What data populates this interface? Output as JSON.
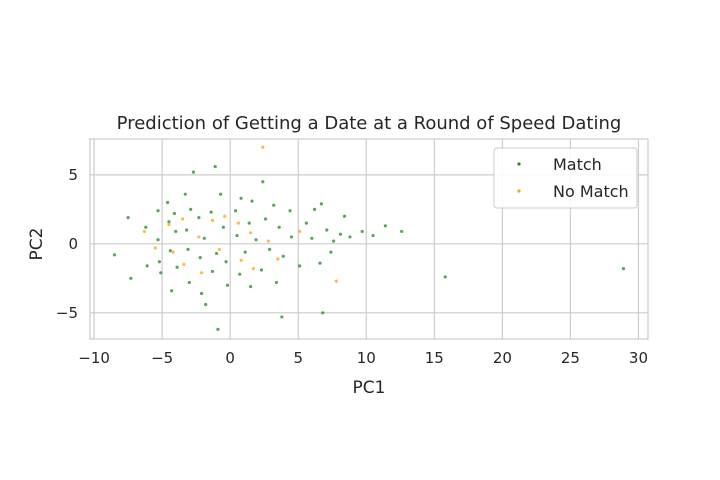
{
  "chart_data": {
    "type": "scatter",
    "title": "Prediction of Getting a Date at a Round of Speed Dating",
    "xlabel": "PC1",
    "ylabel": "PC2",
    "xlim": [
      -10.3,
      30.7
    ],
    "ylim": [
      -6.9,
      7.6
    ],
    "xticks": [
      -10,
      -5,
      0,
      5,
      10,
      15,
      20,
      25,
      30
    ],
    "xtick_labels": [
      "−10",
      "−5",
      "0",
      "5",
      "10",
      "15",
      "20",
      "25",
      "30"
    ],
    "yticks": [
      -5,
      0,
      5
    ],
    "ytick_labels": [
      "−5",
      "0",
      "5"
    ],
    "grid": true,
    "legend_position": "top-right",
    "series": [
      {
        "name": "Match",
        "color": "#1f8a1f",
        "points": [
          [
            -8.5,
            -0.8
          ],
          [
            -7.5,
            1.9
          ],
          [
            -7.3,
            -2.5
          ],
          [
            -6.2,
            1.2
          ],
          [
            -6.1,
            -1.6
          ],
          [
            -5.3,
            2.4
          ],
          [
            -5.3,
            0.3
          ],
          [
            -5.2,
            -1.3
          ],
          [
            -5.1,
            -2.1
          ],
          [
            -4.6,
            3.0
          ],
          [
            -4.5,
            1.6
          ],
          [
            -4.4,
            -0.5
          ],
          [
            -4.3,
            -3.4
          ],
          [
            -4.1,
            2.2
          ],
          [
            -4.0,
            0.9
          ],
          [
            -3.9,
            -1.7
          ],
          [
            -3.3,
            3.6
          ],
          [
            -3.2,
            1.0
          ],
          [
            -3.1,
            -0.4
          ],
          [
            -3.0,
            -2.8
          ],
          [
            -2.9,
            2.5
          ],
          [
            -2.7,
            5.2
          ],
          [
            -2.3,
            1.9
          ],
          [
            -2.2,
            -1.0
          ],
          [
            -2.1,
            -3.6
          ],
          [
            -1.9,
            0.4
          ],
          [
            -1.8,
            -4.4
          ],
          [
            -1.4,
            2.3
          ],
          [
            -1.3,
            -2.0
          ],
          [
            -1.1,
            5.6
          ],
          [
            -1.0,
            -0.7
          ],
          [
            -0.9,
            -6.2
          ],
          [
            -0.7,
            3.6
          ],
          [
            -0.5,
            1.2
          ],
          [
            -0.3,
            -1.3
          ],
          [
            -0.2,
            -3.0
          ],
          [
            0.4,
            2.4
          ],
          [
            0.5,
            0.6
          ],
          [
            0.7,
            -2.2
          ],
          [
            0.8,
            3.3
          ],
          [
            1.1,
            -0.6
          ],
          [
            1.4,
            1.5
          ],
          [
            1.5,
            -3.1
          ],
          [
            1.6,
            3.1
          ],
          [
            1.9,
            0.3
          ],
          [
            2.3,
            -1.9
          ],
          [
            2.4,
            4.5
          ],
          [
            2.6,
            1.8
          ],
          [
            2.9,
            -0.4
          ],
          [
            3.2,
            2.8
          ],
          [
            3.4,
            -2.8
          ],
          [
            3.6,
            1.2
          ],
          [
            3.8,
            -5.3
          ],
          [
            3.9,
            -0.9
          ],
          [
            4.4,
            2.4
          ],
          [
            4.5,
            0.5
          ],
          [
            5.1,
            -1.6
          ],
          [
            5.6,
            1.5
          ],
          [
            6.0,
            0.4
          ],
          [
            6.2,
            2.5
          ],
          [
            6.6,
            -1.4
          ],
          [
            6.7,
            2.9
          ],
          [
            6.8,
            -5.0
          ],
          [
            7.1,
            1.0
          ],
          [
            7.4,
            -0.6
          ],
          [
            7.6,
            0.2
          ],
          [
            8.1,
            0.7
          ],
          [
            8.4,
            2.0
          ],
          [
            8.8,
            0.5
          ],
          [
            9.7,
            0.9
          ],
          [
            10.5,
            0.6
          ],
          [
            11.4,
            1.3
          ],
          [
            12.6,
            0.9
          ],
          [
            15.8,
            -2.4
          ],
          [
            28.9,
            -1.8
          ]
        ]
      },
      {
        "name": "No Match",
        "color": "#ffa500",
        "points": [
          [
            -6.3,
            0.9
          ],
          [
            -5.5,
            -0.3
          ],
          [
            -4.5,
            1.4
          ],
          [
            -4.2,
            -0.6
          ],
          [
            -3.5,
            1.8
          ],
          [
            -3.4,
            -1.5
          ],
          [
            -2.3,
            0.5
          ],
          [
            -2.1,
            -2.1
          ],
          [
            -1.3,
            1.7
          ],
          [
            -0.8,
            -0.4
          ],
          [
            -0.4,
            2.0
          ],
          [
            0.6,
            1.5
          ],
          [
            0.8,
            -1.2
          ],
          [
            1.5,
            0.8
          ],
          [
            1.7,
            -1.8
          ],
          [
            2.4,
            7.0
          ],
          [
            2.8,
            0.2
          ],
          [
            3.5,
            -1.1
          ],
          [
            5.1,
            0.9
          ],
          [
            7.8,
            -2.7
          ]
        ]
      }
    ]
  }
}
